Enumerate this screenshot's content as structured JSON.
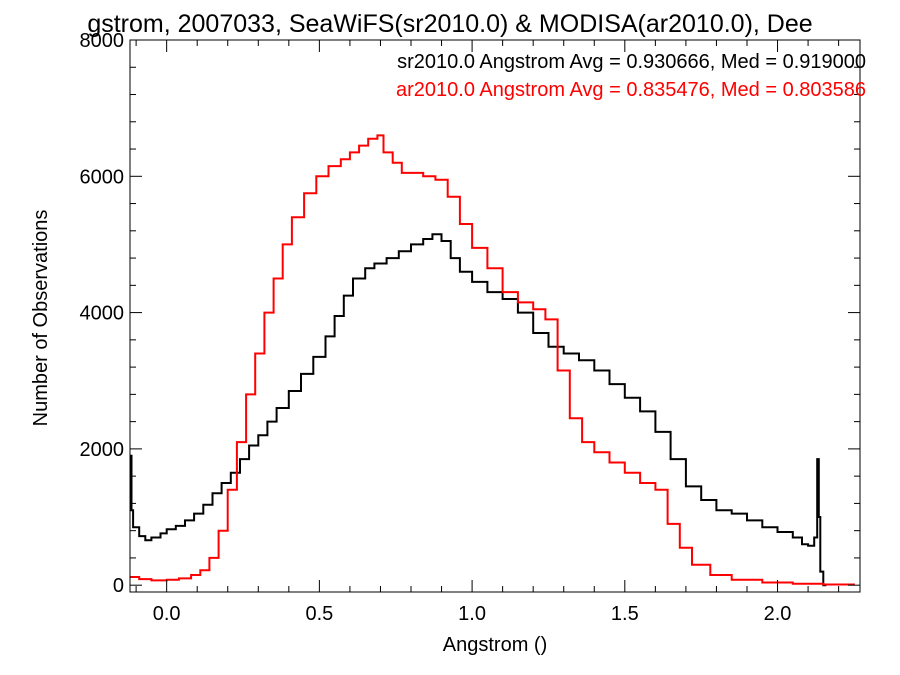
{
  "chart_data": {
    "type": "line",
    "title": "gstrom, 2007033, SeaWiFS(sr2010.0) & MODISA(ar2010.0), Dee",
    "xlabel": "Angstrom ()",
    "ylabel": "Number of Observations",
    "xlim": [
      -0.12,
      2.27
    ],
    "ylim": [
      -100,
      8000
    ],
    "x_ticks": [
      0.0,
      0.5,
      1.0,
      1.5,
      2.0
    ],
    "x_tick_labels": [
      "0.0",
      "0.5",
      "1.0",
      "1.5",
      "2.0"
    ],
    "y_ticks": [
      0,
      2000,
      4000,
      6000,
      8000
    ],
    "y_tick_labels": [
      "0",
      "2000",
      "4000",
      "6000",
      "8000"
    ],
    "grid": false,
    "legend_position": "top-right",
    "annotations": [
      {
        "text": "sr2010.0 Angstrom Avg = 0.930666, Med = 0.919000",
        "color": "#000000"
      },
      {
        "text": "ar2010.0 Angstrom Avg = 0.835476, Med = 0.803586",
        "color": "#ff0000"
      }
    ],
    "series": [
      {
        "color": "#000000",
        "x": [
          -0.12,
          -0.115,
          -0.11,
          -0.09,
          -0.07,
          -0.05,
          -0.02,
          0.0,
          0.03,
          0.06,
          0.09,
          0.12,
          0.15,
          0.18,
          0.21,
          0.24,
          0.27,
          0.3,
          0.33,
          0.36,
          0.4,
          0.44,
          0.48,
          0.52,
          0.55,
          0.58,
          0.61,
          0.65,
          0.68,
          0.72,
          0.76,
          0.8,
          0.84,
          0.87,
          0.9,
          0.93,
          0.96,
          1.0,
          1.05,
          1.1,
          1.15,
          1.2,
          1.25,
          1.3,
          1.35,
          1.4,
          1.45,
          1.5,
          1.55,
          1.6,
          1.65,
          1.7,
          1.75,
          1.8,
          1.85,
          1.9,
          1.95,
          2.0,
          2.05,
          2.08,
          2.1,
          2.12,
          2.13,
          2.135,
          2.14,
          2.15,
          2.155,
          2.16
        ],
        "values": [
          1900,
          1100,
          850,
          720,
          660,
          700,
          760,
          820,
          870,
          950,
          1050,
          1180,
          1350,
          1500,
          1650,
          1850,
          2050,
          2200,
          2400,
          2600,
          2850,
          3100,
          3350,
          3650,
          3950,
          4250,
          4500,
          4650,
          4720,
          4800,
          4900,
          5000,
          5080,
          5150,
          5050,
          4800,
          4600,
          4450,
          4300,
          4200,
          4000,
          3700,
          3500,
          3400,
          3300,
          3150,
          2950,
          2750,
          2550,
          2250,
          1850,
          1450,
          1250,
          1100,
          1050,
          950,
          850,
          780,
          700,
          600,
          580,
          700,
          1850,
          1000,
          200,
          0,
          0,
          0
        ]
      },
      {
        "color": "#ff0000",
        "x": [
          -0.12,
          -0.09,
          -0.05,
          0.0,
          0.04,
          0.08,
          0.11,
          0.14,
          0.17,
          0.2,
          0.23,
          0.26,
          0.29,
          0.32,
          0.35,
          0.38,
          0.41,
          0.45,
          0.49,
          0.53,
          0.57,
          0.6,
          0.63,
          0.66,
          0.69,
          0.71,
          0.74,
          0.77,
          0.8,
          0.84,
          0.88,
          0.92,
          0.96,
          1.0,
          1.05,
          1.1,
          1.15,
          1.2,
          1.24,
          1.28,
          1.32,
          1.36,
          1.4,
          1.45,
          1.5,
          1.55,
          1.6,
          1.64,
          1.68,
          1.72,
          1.78,
          1.85,
          1.95,
          2.05,
          2.15,
          2.25
        ],
        "values": [
          120,
          90,
          70,
          80,
          100,
          150,
          220,
          400,
          800,
          1400,
          2100,
          2800,
          3400,
          4000,
          4500,
          5000,
          5400,
          5750,
          6000,
          6150,
          6250,
          6350,
          6450,
          6550,
          6600,
          6350,
          6200,
          6050,
          6050,
          6000,
          5950,
          5700,
          5300,
          4950,
          4650,
          4300,
          4150,
          4050,
          3900,
          3150,
          2450,
          2100,
          1950,
          1800,
          1650,
          1500,
          1400,
          900,
          550,
          300,
          150,
          80,
          40,
          20,
          10,
          0
        ]
      }
    ]
  }
}
